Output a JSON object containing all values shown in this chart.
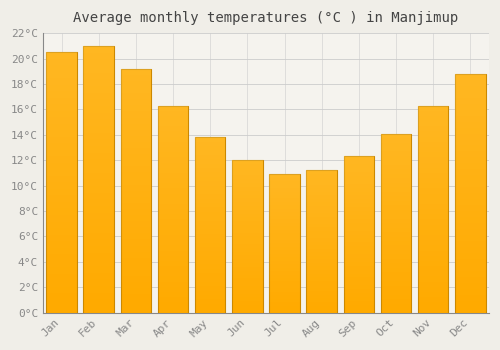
{
  "title": "Average monthly temperatures (°C ) in Manjimup",
  "months": [
    "Jan",
    "Feb",
    "Mar",
    "Apr",
    "May",
    "Jun",
    "Jul",
    "Aug",
    "Sep",
    "Oct",
    "Nov",
    "Dec"
  ],
  "values": [
    20.5,
    21.0,
    19.2,
    16.3,
    13.8,
    12.0,
    10.9,
    11.2,
    12.3,
    14.1,
    16.3,
    18.8
  ],
  "bar_color": "#FFAA00",
  "bar_edge_color": "#CC8800",
  "bar_gradient_top": "#FFD060",
  "background_color": "#F0EEE8",
  "plot_bg_color": "#F5F3EE",
  "grid_color": "#CCCCCC",
  "text_color": "#888888",
  "title_color": "#444444",
  "ylim": [
    0,
    22
  ],
  "ytick_step": 2,
  "title_fontsize": 10,
  "tick_fontsize": 8,
  "font_family": "monospace"
}
